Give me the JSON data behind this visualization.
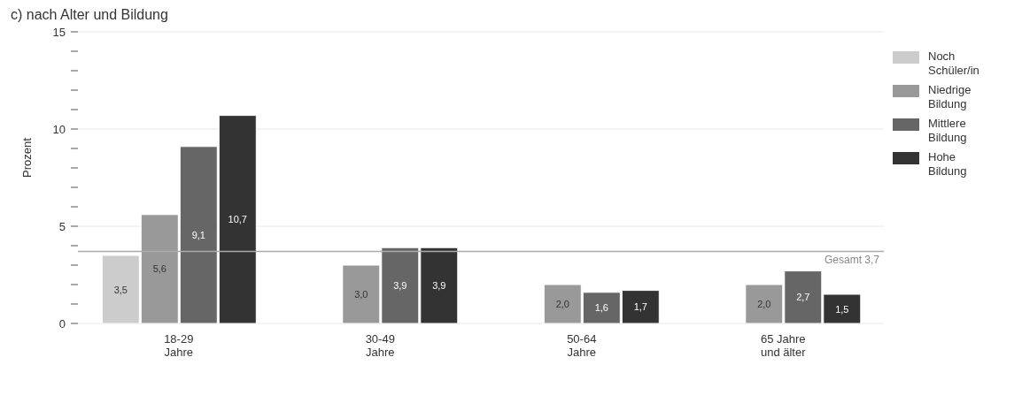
{
  "chart_data": {
    "type": "bar",
    "title": "c) nach Alter und Bildung",
    "ylabel": "Prozent",
    "categories": [
      "18-29 Jahre",
      "30-49 Jahre",
      "50-64 Jahre",
      "65 Jahre und älter"
    ],
    "series": [
      {
        "name": "Noch Schüler/in",
        "color": "#cccccc",
        "values": [
          3.5,
          null,
          null,
          null
        ],
        "value_labels": [
          "3,5",
          null,
          null,
          null
        ]
      },
      {
        "name": "Niedrige Bildung",
        "color": "#999999",
        "values": [
          5.6,
          3.0,
          2.0,
          2.0
        ],
        "value_labels": [
          "5,6",
          "3,0",
          "2,0",
          "2,0"
        ]
      },
      {
        "name": "Mittlere Bildung",
        "color": "#666666",
        "values": [
          9.1,
          3.9,
          1.6,
          2.7
        ],
        "value_labels": [
          "9,1",
          "3,9",
          "1,6",
          "2,7"
        ]
      },
      {
        "name": "Hohe Bildung",
        "color": "#333333",
        "values": [
          10.7,
          3.9,
          1.7,
          1.5
        ],
        "value_labels": [
          "10,7",
          "3,9",
          "1,7",
          "1,5"
        ]
      }
    ],
    "ylim": [
      0,
      15
    ],
    "yticks": [
      0,
      {
        "value": 1,
        "label": null
      },
      {
        "value": 2,
        "label": null
      },
      {
        "value": 3,
        "label": null
      },
      {
        "value": 4,
        "label": null
      },
      5,
      {
        "value": 6,
        "label": null
      },
      {
        "value": 7,
        "label": null
      },
      {
        "value": 8,
        "label": null
      },
      {
        "value": 9,
        "label": null
      },
      10,
      {
        "value": 11,
        "label": null
      },
      {
        "value": 12,
        "label": null
      },
      {
        "value": 13,
        "label": null
      },
      {
        "value": 14,
        "label": null
      },
      15
    ],
    "grid": "y",
    "legend": "right",
    "ref_lines": [
      {
        "axis": "y",
        "value": 3.7,
        "label": "Gesamt 3,7",
        "color": "#aaaaaa"
      }
    ]
  }
}
